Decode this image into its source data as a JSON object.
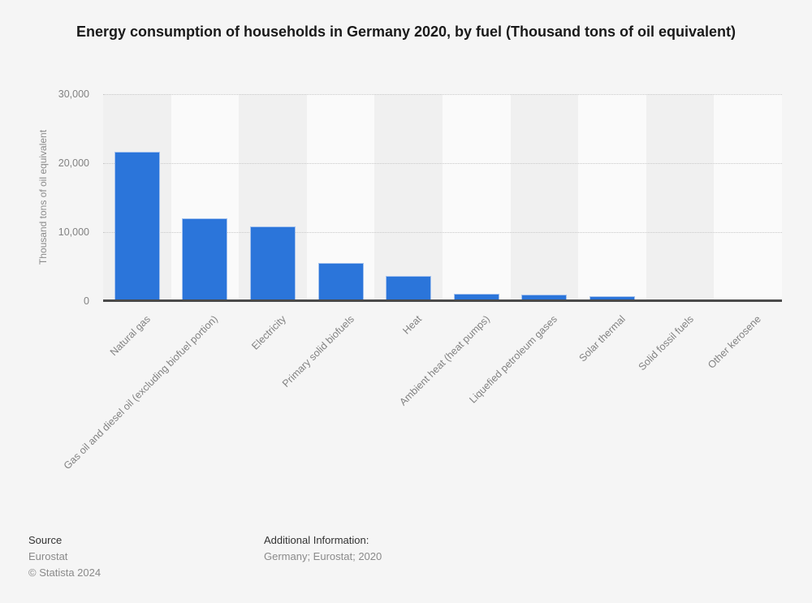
{
  "title": "Energy consumption of households in Germany 2020, by fuel (Thousand tons of oil equivalent)",
  "footer": {
    "source_label": "Source",
    "source_value": "Eurostat",
    "copyright": "© Statista 2024",
    "additional_label": "Additional Information:",
    "additional_value": "Germany; Eurostat; 2020"
  },
  "chart_data": {
    "type": "bar",
    "title": "Energy consumption of households in Germany 2020, by fuel (Thousand tons of oil equivalent)",
    "categories": [
      "Natural gas",
      "Gas oil and diesel oil (excluding biofuel portion)",
      "Electricity",
      "Primary solid biofuels",
      "Heat",
      "Ambient heat (heat pumps)",
      "Liquefied petroleum gases",
      "Solar thermal",
      "Solid fossil fuels",
      "Other kerosene"
    ],
    "values": [
      21650,
      11950,
      10850,
      5500,
      3700,
      1050,
      950,
      750,
      200,
      25
    ],
    "xlabel": "",
    "ylabel": "Thousand tons of oil equivalent",
    "ylim": [
      0,
      30000
    ],
    "yticks": [
      0,
      10000,
      20000,
      30000
    ],
    "ytick_labels": [
      "0",
      "10,000",
      "20,000",
      "30,000"
    ],
    "grid": "horizontal-dotted",
    "legend": "none",
    "bar_color": "#2b75da",
    "bar_border_color": "#a5c2ee",
    "stripe_colors": [
      "#f0f0f0",
      "#fafafa"
    ]
  }
}
